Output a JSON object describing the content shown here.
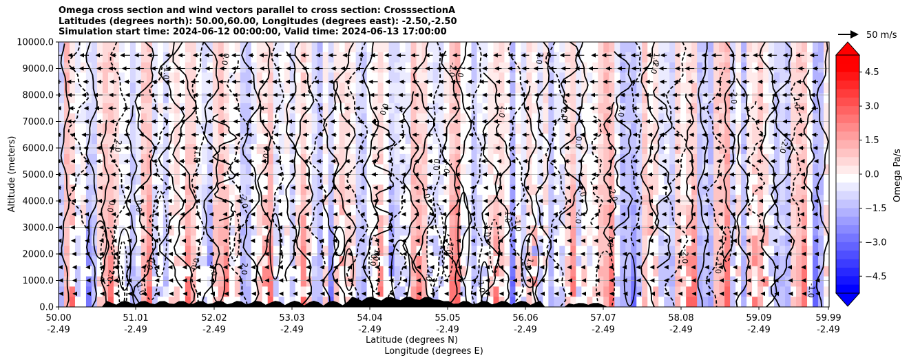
{
  "chart_data": {
    "type": "heatmap",
    "title_lines": [
      "Omega cross section and wind vectors parallel to cross section: CrosssectionA",
      "Latitudes (degrees north): 50.00,60.00, Longitudes (degrees east): -2.50,-2.50",
      "Simulation start time: 2024-06-12 00:00:00, Valid time: 2024-06-13 17:00:00"
    ],
    "ylabel": "Altitude (meters)",
    "xlabel_lat": "Latitude (degrees N)",
    "xlabel_lon": "Longitude (degrees E)",
    "ylim": [
      0,
      10000
    ],
    "y_ticks": [
      "0.0",
      "1000.0",
      "2000.0",
      "3000.0",
      "4000.0",
      "5000.0",
      "6000.0",
      "7000.0",
      "8000.0",
      "9000.0",
      "10000.0"
    ],
    "x_ticks_lat": [
      "50.00",
      "51.01",
      "52.02",
      "53.03",
      "54.04",
      "55.05",
      "56.06",
      "57.07",
      "58.08",
      "59.09",
      "59.99"
    ],
    "x_ticks_lon": [
      "-2.49",
      "-2.49",
      "-2.49",
      "-2.49",
      "-2.49",
      "-2.49",
      "-2.49",
      "-2.49",
      "-2.49",
      "-2.49",
      "-2.49"
    ],
    "colorbar": {
      "label": "Omega Pa/s",
      "range": [
        -5.25,
        5.25
      ],
      "ticks": [
        "4.5",
        "3.0",
        "1.5",
        "0.0",
        "−1.5",
        "−3.0",
        "−4.5"
      ],
      "extend": "both"
    },
    "quiver_key": {
      "label": "50 m/s",
      "speed": 50
    },
    "contour_labels": [
      "0.0",
      "1.0",
      "2.0",
      "-1.0",
      "-2.0"
    ],
    "colors": {
      "positive": "#ff0000",
      "negative": "#0000ff",
      "neutral": "#ffffff"
    }
  }
}
